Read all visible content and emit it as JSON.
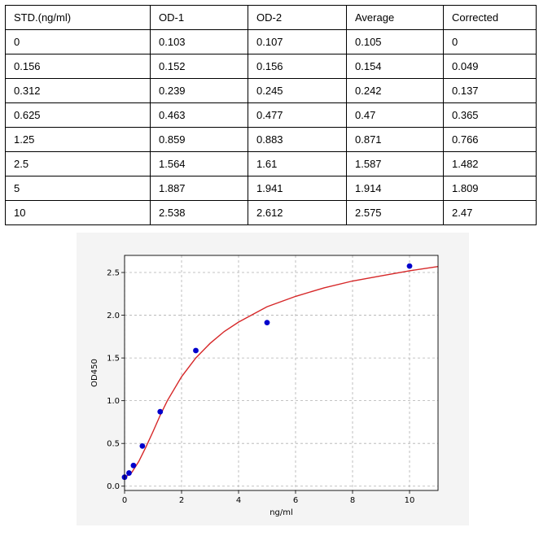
{
  "table": {
    "headers": [
      "STD.(ng/ml)",
      "OD-1",
      "OD-2",
      "Average",
      "Corrected"
    ],
    "rows": [
      [
        "0",
        "0.103",
        "0.107",
        "0.105",
        "0"
      ],
      [
        "0.156",
        "0.152",
        "0.156",
        "0.154",
        "0.049"
      ],
      [
        "0.312",
        "0.239",
        "0.245",
        "0.242",
        "0.137"
      ],
      [
        "0.625",
        "0.463",
        "0.477",
        "0.47",
        "0.365"
      ],
      [
        "1.25",
        "0.859",
        "0.883",
        "0.871",
        "0.766"
      ],
      [
        "2.5",
        "1.564",
        "1.61",
        "1.587",
        "1.482"
      ],
      [
        "5",
        "1.887",
        "1.941",
        "1.914",
        "1.809"
      ],
      [
        "10",
        "2.538",
        "2.612",
        "2.575",
        "2.47"
      ]
    ]
  },
  "chart_data": {
    "type": "scatter",
    "title": "",
    "xlabel": "ng/ml",
    "ylabel": "OD450",
    "xlim": [
      0,
      11
    ],
    "ylim": [
      -0.05,
      2.7
    ],
    "xticks": [
      0,
      2,
      4,
      6,
      8,
      10
    ],
    "xtick_labels": [
      "0",
      "2",
      "4",
      "6",
      "8",
      "10"
    ],
    "yticks": [
      0.0,
      0.5,
      1.0,
      1.5,
      2.0,
      2.5
    ],
    "ytick_labels": [
      "0.0",
      "0.5",
      "1.0",
      "1.5",
      "2.0",
      "2.5"
    ],
    "grid": true,
    "series": [
      {
        "kind": "points",
        "color": "#0000cc",
        "x": [
          0,
          0.156,
          0.312,
          0.625,
          1.25,
          2.5,
          5,
          10
        ],
        "y": [
          0.105,
          0.154,
          0.242,
          0.47,
          0.871,
          1.587,
          1.914,
          2.575
        ]
      },
      {
        "kind": "fit-curve",
        "color": "#d62728",
        "x": [
          0,
          0.25,
          0.5,
          0.75,
          1,
          1.25,
          1.5,
          2,
          2.5,
          3,
          3.5,
          4,
          5,
          6,
          7,
          8,
          9,
          10,
          11
        ],
        "y": [
          0.1,
          0.16,
          0.29,
          0.46,
          0.64,
          0.83,
          1.0,
          1.28,
          1.5,
          1.67,
          1.81,
          1.92,
          2.1,
          2.22,
          2.32,
          2.4,
          2.46,
          2.52,
          2.57
        ]
      }
    ]
  }
}
